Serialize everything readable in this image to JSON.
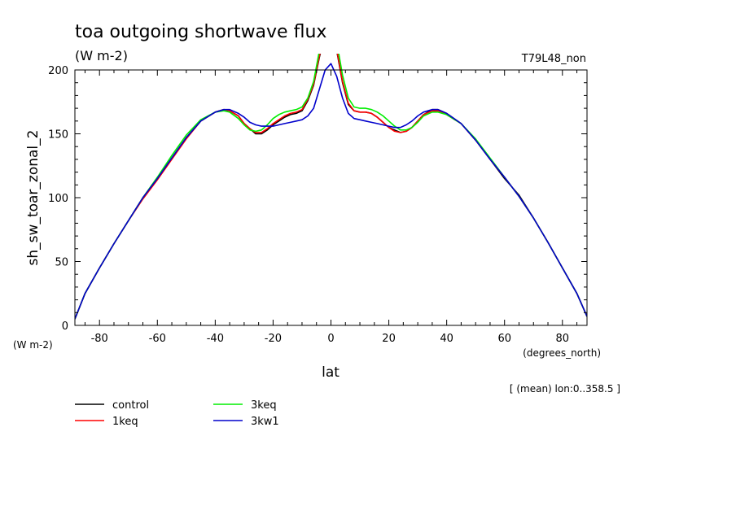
{
  "chart_data": {
    "type": "line",
    "title": "toa outgoing shortwave flux",
    "units": "(W m-2)",
    "experiment": "T79L48_non",
    "ylabel": "sh_sw_toar_zonal_2",
    "ylabel_units": "(W m-2)",
    "xlabel": "lat",
    "xlabel_units": "(degrees_north)",
    "annotation": "[ (mean) lon:0..358.5 ]",
    "xlim": [
      -88.5,
      88.5
    ],
    "ylim": [
      0,
      200
    ],
    "xticks": [
      -80,
      -60,
      -40,
      -20,
      0,
      20,
      40,
      60,
      80
    ],
    "yticks": [
      0,
      50,
      100,
      150,
      200
    ],
    "legend_position": "bottom-left",
    "series": [
      {
        "name": "control",
        "color": "#000000",
        "x": [
          -88.5,
          -85,
          -80,
          -75,
          -70,
          -65,
          -60,
          -55,
          -50,
          -45,
          -40,
          -37,
          -35,
          -32,
          -30,
          -28,
          -26,
          -24,
          -22,
          -20,
          -18,
          -16,
          -14,
          -12,
          -10,
          -8,
          -6,
          -4,
          -2,
          0,
          2,
          4,
          6,
          8,
          10,
          12,
          14,
          16,
          18,
          20,
          22,
          24,
          26,
          28,
          30,
          32,
          35,
          37,
          40,
          45,
          50,
          55,
          60,
          65,
          70,
          75,
          80,
          85,
          88.5
        ],
        "y": [
          5,
          25,
          45,
          64,
          82,
          100,
          115,
          131,
          147,
          160,
          167,
          169,
          168,
          164,
          158,
          154,
          150,
          150,
          153,
          157,
          160,
          163,
          165,
          166,
          168,
          176,
          188,
          210,
          228,
          233,
          215,
          190,
          173,
          168,
          167,
          167,
          166,
          163,
          159,
          155,
          153,
          151,
          152,
          155,
          160,
          165,
          169,
          169,
          166,
          158,
          145,
          130,
          115,
          102,
          84,
          65,
          45,
          25,
          7
        ]
      },
      {
        "name": "1keq",
        "color": "#ff0000",
        "x": [
          -88.5,
          -85,
          -80,
          -75,
          -70,
          -65,
          -60,
          -55,
          -50,
          -45,
          -40,
          -37,
          -35,
          -32,
          -30,
          -28,
          -26,
          -24,
          -22,
          -20,
          -18,
          -16,
          -14,
          -12,
          -10,
          -8,
          -6,
          -4,
          -2,
          0,
          2,
          4,
          6,
          8,
          10,
          12,
          14,
          16,
          18,
          20,
          22,
          24,
          26,
          28,
          30,
          32,
          35,
          37,
          40,
          45,
          50,
          55,
          60,
          65,
          70,
          75,
          80,
          85,
          88.5
        ],
        "y": [
          5,
          25,
          45,
          64,
          82,
          99,
          114,
          130,
          146,
          160,
          167,
          169,
          168,
          164,
          158,
          154,
          151,
          151,
          154,
          158,
          161,
          164,
          166,
          167,
          169,
          177,
          189,
          211,
          229,
          234,
          216,
          191,
          174,
          168,
          167,
          167,
          166,
          163,
          159,
          155,
          152,
          151,
          152,
          155,
          160,
          165,
          168,
          168,
          165,
          158,
          145,
          130,
          116,
          101,
          84,
          65,
          45,
          25,
          7
        ]
      },
      {
        "name": "3keq",
        "color": "#00ee00",
        "x": [
          -88.5,
          -85,
          -80,
          -75,
          -70,
          -65,
          -60,
          -55,
          -50,
          -45,
          -40,
          -37,
          -35,
          -32,
          -30,
          -28,
          -26,
          -24,
          -22,
          -20,
          -18,
          -16,
          -14,
          -12,
          -10,
          -8,
          -6,
          -4,
          -2,
          0,
          2,
          4,
          6,
          8,
          10,
          12,
          14,
          16,
          18,
          20,
          22,
          24,
          26,
          28,
          30,
          32,
          35,
          37,
          40,
          45,
          50,
          55,
          60,
          65,
          70,
          75,
          80,
          85,
          88.5
        ],
        "y": [
          5,
          25,
          45,
          64,
          82,
          100,
          116,
          133,
          149,
          161,
          167,
          168,
          167,
          162,
          157,
          153,
          152,
          153,
          157,
          162,
          165,
          167,
          168,
          169,
          171,
          178,
          191,
          215,
          235,
          238,
          222,
          196,
          178,
          171,
          170,
          170,
          169,
          167,
          164,
          160,
          156,
          153,
          153,
          155,
          159,
          164,
          167,
          167,
          165,
          158,
          146,
          131,
          116,
          101,
          84,
          65,
          45,
          25,
          7
        ]
      },
      {
        "name": "3kw1",
        "color": "#0000cc",
        "x": [
          -88.5,
          -85,
          -80,
          -75,
          -70,
          -65,
          -60,
          -55,
          -50,
          -45,
          -40,
          -37,
          -35,
          -32,
          -30,
          -28,
          -26,
          -24,
          -22,
          -20,
          -18,
          -16,
          -14,
          -12,
          -10,
          -8,
          -6,
          -4,
          -2,
          0,
          2,
          4,
          6,
          8,
          10,
          12,
          14,
          16,
          18,
          20,
          22,
          24,
          26,
          28,
          30,
          32,
          35,
          37,
          40,
          45,
          50,
          55,
          60,
          65,
          70,
          75,
          80,
          85,
          88.5
        ],
        "y": [
          5,
          25,
          45,
          64,
          82,
          100,
          115,
          131,
          147,
          160,
          167,
          169,
          169,
          166,
          163,
          159,
          157,
          156,
          156,
          156,
          157,
          158,
          159,
          160,
          161,
          164,
          170,
          185,
          200,
          205,
          195,
          178,
          166,
          162,
          161,
          160,
          159,
          158,
          157,
          156,
          155,
          155,
          157,
          160,
          164,
          167,
          169,
          169,
          166,
          158,
          145,
          130,
          116,
          101,
          84,
          65,
          45,
          25,
          7
        ]
      }
    ]
  }
}
